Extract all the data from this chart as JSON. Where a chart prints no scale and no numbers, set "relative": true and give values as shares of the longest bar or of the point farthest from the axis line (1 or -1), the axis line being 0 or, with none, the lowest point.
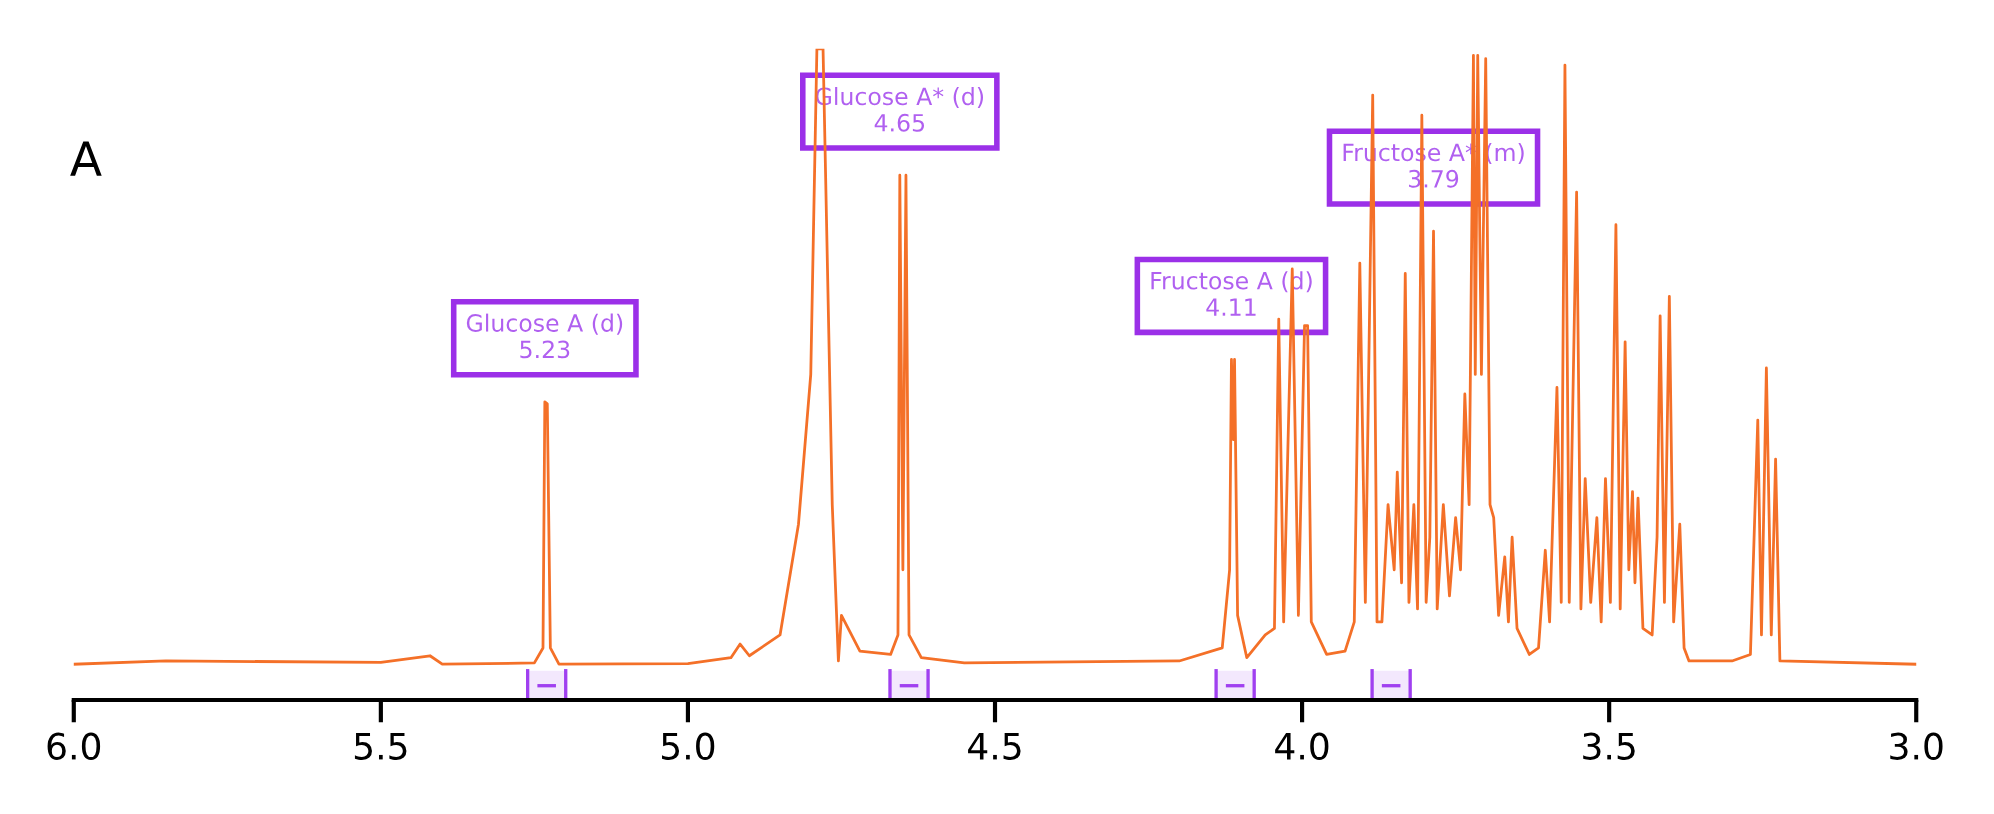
{
  "chart_data": {
    "type": "line",
    "title": "A",
    "relative": true,
    "tick_labels": "x",
    "grid": false,
    "xlim": [
      6.0,
      3.0
    ],
    "xticks": [
      {
        "value": 6,
        "label": "6.0"
      },
      5.5,
      {
        "value": 5,
        "label": "5.0"
      },
      4.5,
      {
        "value": 4,
        "label": "4.0"
      },
      3.5,
      {
        "value": 3,
        "label": "3.0"
      }
    ],
    "series": [
      {
        "color": "#f47028",
        "x": [
          6.0,
          5.85,
          5.5,
          5.42,
          5.4,
          5.25,
          5.236,
          5.233,
          5.229,
          5.224,
          5.21,
          5.0,
          4.93,
          4.915,
          4.9,
          4.85,
          4.82,
          4.8,
          4.79,
          4.78,
          4.765,
          4.755,
          4.75,
          4.72,
          4.67,
          4.658,
          4.655,
          4.65,
          4.645,
          4.64,
          4.62,
          4.55,
          4.2,
          4.13,
          4.118,
          4.115,
          4.112,
          4.11,
          4.105,
          4.09,
          4.06,
          4.045,
          4.038,
          4.03,
          4.016,
          4.006,
          3.996,
          3.991,
          3.985,
          3.96,
          3.93,
          3.915,
          3.906,
          3.897,
          3.885,
          3.878,
          3.87,
          3.86,
          3.85,
          3.845,
          3.838,
          3.832,
          3.826,
          3.818,
          3.812,
          3.805,
          3.798,
          3.792,
          3.786,
          3.78,
          3.77,
          3.76,
          3.75,
          3.742,
          3.735,
          3.728,
          3.721,
          3.718,
          3.714,
          3.708,
          3.701,
          3.694,
          3.688,
          3.68,
          3.67,
          3.664,
          3.658,
          3.65,
          3.63,
          3.615,
          3.604,
          3.597,
          3.585,
          3.578,
          3.572,
          3.565,
          3.553,
          3.546,
          3.539,
          3.53,
          3.52,
          3.513,
          3.506,
          3.498,
          3.489,
          3.482,
          3.474,
          3.468,
          3.462,
          3.458,
          3.453,
          3.445,
          3.43,
          3.422,
          3.417,
          3.41,
          3.402,
          3.395,
          3.385,
          3.378,
          3.37,
          3.3,
          3.27,
          3.258,
          3.252,
          3.244,
          3.236,
          3.229,
          3.222,
          3.0
        ],
        "values": [
          0.055,
          0.06,
          0.058,
          0.068,
          0.055,
          0.057,
          0.08,
          0.458,
          0.455,
          0.08,
          0.055,
          0.056,
          0.065,
          0.086,
          0.068,
          0.1,
          0.27,
          0.5,
          1.0,
          1.0,
          0.3,
          0.06,
          0.13,
          0.075,
          0.07,
          0.1,
          0.806,
          0.2,
          0.806,
          0.1,
          0.065,
          0.057,
          0.06,
          0.08,
          0.2,
          0.523,
          0.4,
          0.523,
          0.13,
          0.065,
          0.1,
          0.11,
          0.585,
          0.12,
          0.662,
          0.13,
          0.575,
          0.575,
          0.12,
          0.07,
          0.075,
          0.12,
          0.671,
          0.15,
          0.929,
          0.12,
          0.12,
          0.3,
          0.2,
          0.35,
          0.18,
          0.655,
          0.15,
          0.3,
          0.14,
          0.898,
          0.15,
          0.25,
          0.72,
          0.14,
          0.3,
          0.16,
          0.28,
          0.2,
          0.47,
          0.3,
          0.99,
          0.5,
          0.99,
          0.5,
          0.985,
          0.3,
          0.28,
          0.13,
          0.22,
          0.12,
          0.25,
          0.11,
          0.07,
          0.08,
          0.23,
          0.12,
          0.48,
          0.15,
          0.975,
          0.15,
          0.78,
          0.14,
          0.34,
          0.15,
          0.28,
          0.12,
          0.34,
          0.15,
          0.73,
          0.14,
          0.55,
          0.2,
          0.32,
          0.18,
          0.31,
          0.11,
          0.1,
          0.25,
          0.59,
          0.15,
          0.62,
          0.12,
          0.27,
          0.08,
          0.06,
          0.06,
          0.07,
          0.43,
          0.1,
          0.51,
          0.1,
          0.37,
          0.06,
          0.055
        ]
      }
    ],
    "annotations": [
      {
        "text": "Glucose A (d)\n5.23",
        "x": 5.233,
        "y": 0.458
      },
      {
        "text": "Glucose A* (d)\n4.65",
        "x": 4.655,
        "y": 0.806
      },
      {
        "text": "Fructose A (d)\n4.11",
        "x": 4.115,
        "y": 0.523
      },
      {
        "text": "Fructose A* (m)\n3.79",
        "x": 3.786,
        "y": 0.72
      }
    ],
    "bands": [
      {
        "axis": "x",
        "from": 5.261,
        "to": 5.199,
        "color": "#a040f0"
      },
      {
        "axis": "x",
        "from": 4.671,
        "to": 4.609,
        "color": "#a040f0"
      },
      {
        "axis": "x",
        "from": 4.14,
        "to": 4.078,
        "color": "#a040f0"
      },
      {
        "axis": "x",
        "from": 3.886,
        "to": 3.824,
        "color": "#a040f0"
      }
    ]
  }
}
